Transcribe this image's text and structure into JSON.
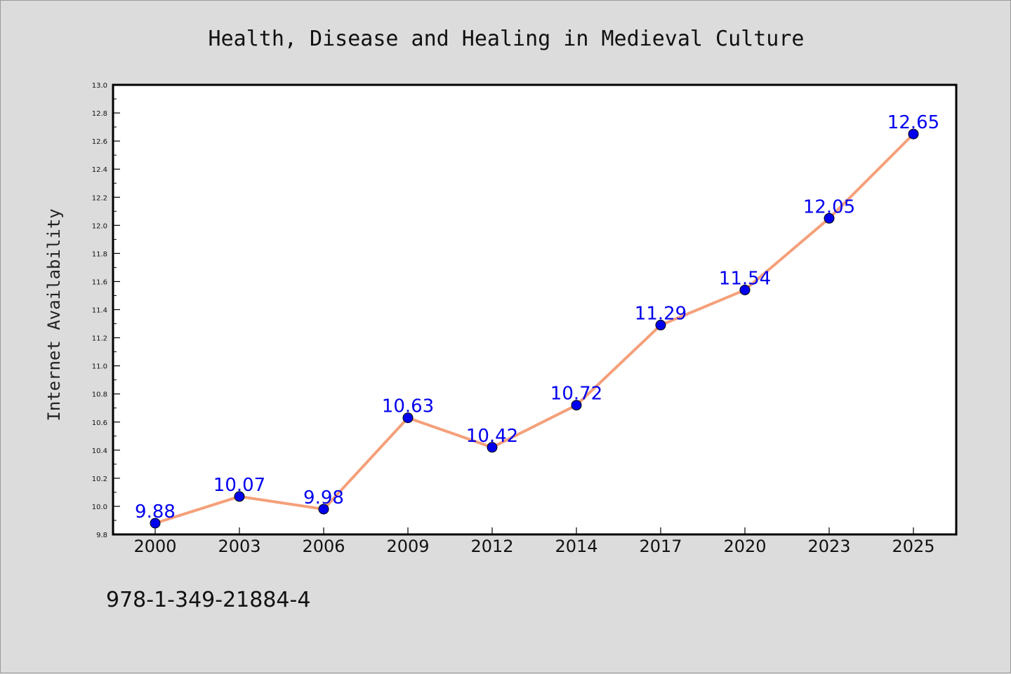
{
  "chart_data": {
    "type": "line",
    "title": "Health, Disease and Healing in Medieval Culture",
    "xlabel": "",
    "ylabel": "Internet Availability",
    "categories": [
      "2000",
      "2003",
      "2006",
      "2009",
      "2012",
      "2014",
      "2017",
      "2020",
      "2023",
      "2025"
    ],
    "series": [
      {
        "values": [
          9.88,
          10.07,
          9.98,
          10.63,
          10.42,
          10.72,
          11.29,
          11.54,
          12.05,
          12.65
        ],
        "labels": [
          "9.88",
          "10.07",
          "9.98",
          "10.63",
          "10.42",
          "10.72",
          "11.29",
          "11.54",
          "12.05",
          "12.65"
        ]
      }
    ],
    "ylim": [
      9.8,
      13.0
    ],
    "yticks": [
      "9.8",
      "10.0",
      "10.2",
      "10.4",
      "10.6",
      "10.8",
      "11.0",
      "11.2",
      "11.4",
      "11.6",
      "11.8",
      "12.0",
      "12.2",
      "12.4",
      "12.6",
      "12.8",
      "13.0"
    ],
    "grid": false,
    "legend": "none",
    "colors": {
      "line": "#f4a07a",
      "marker": "#0000ee",
      "data_label": "#0000ee",
      "background": "#dcdcdc",
      "plot_background": "#ffffff"
    }
  },
  "footer": {
    "isbn": "978-1-349-21884-4"
  }
}
